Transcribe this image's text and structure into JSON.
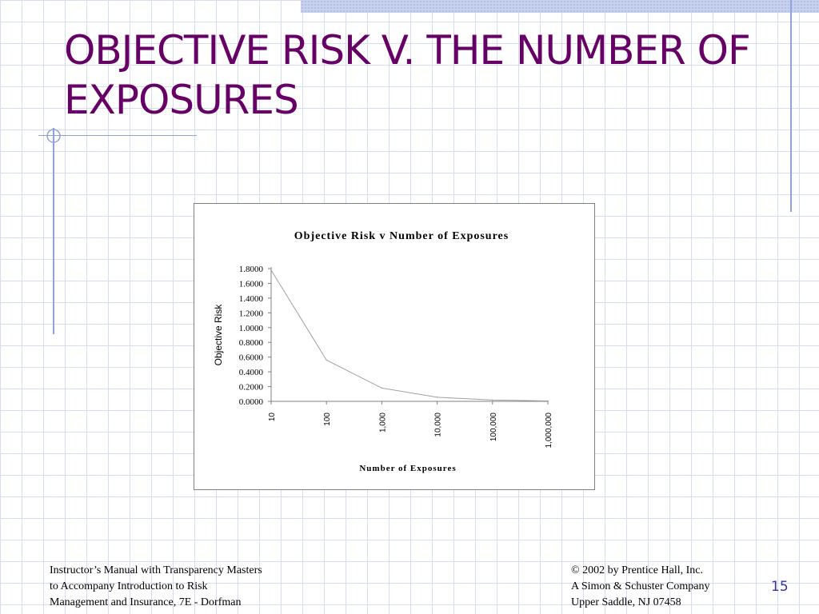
{
  "slide": {
    "title": "OBJECTIVE RISK V. THE NUMBER OF EXPOSURES",
    "title_color": "#660066",
    "number": "15",
    "footer_left": [
      "Instructor’s Manual with Transparency Masters",
      "to Accompany Introduction to Risk",
      "Management and Insurance, 7E - Dorfman"
    ],
    "footer_right": [
      "© 2002 by Prentice Hall, Inc.",
      "A Simon & Schuster Company",
      "Upper Saddle, NJ  07458"
    ]
  },
  "chart_data": {
    "type": "line",
    "title": "Objective Risk v Number of Exposures",
    "xlabel": "Number of Exposures",
    "ylabel": "Objective Risk",
    "categories": [
      "10",
      "100",
      "1,000",
      "10,000",
      "100,000",
      "1,000,000"
    ],
    "values": [
      1.78,
      0.56,
      0.18,
      0.056,
      0.018,
      0.006
    ],
    "yticks": [
      "0.0000",
      "0.2000",
      "0.4000",
      "0.6000",
      "0.8000",
      "1.0000",
      "1.2000",
      "1.4000",
      "1.6000",
      "1.8000"
    ],
    "ylim": [
      0,
      1.8
    ],
    "grid": false,
    "line_color": "#a0a0a0"
  }
}
